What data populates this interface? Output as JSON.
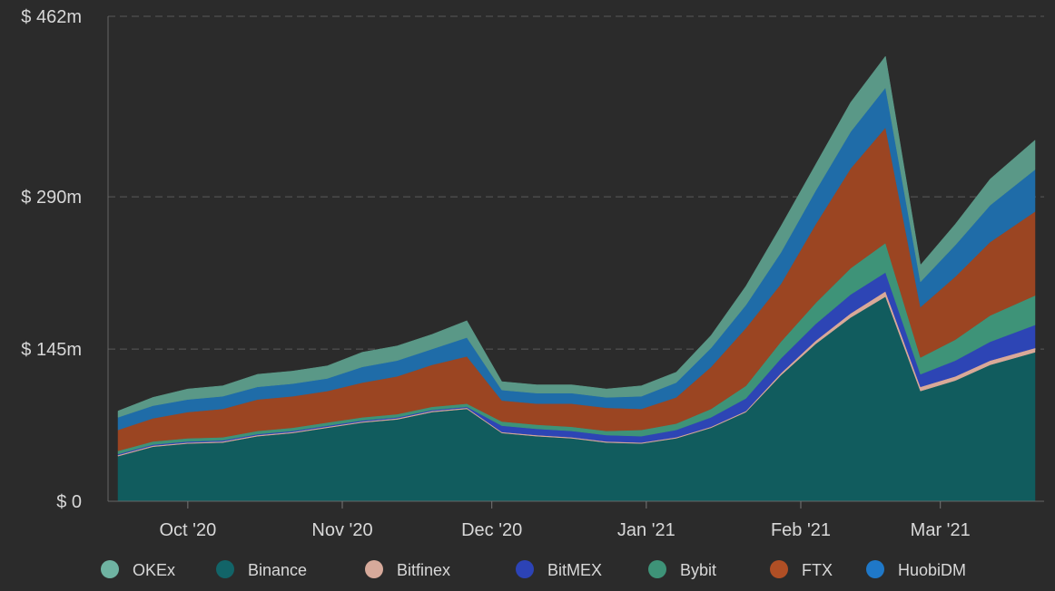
{
  "chart_data": {
    "type": "area",
    "stacked": true,
    "title": "",
    "xlabel": "",
    "ylabel": "",
    "ylim": [
      0,
      462
    ],
    "y_ticks": [
      {
        "value": 0,
        "label": "$ 0"
      },
      {
        "value": 145,
        "label": "$ 145m"
      },
      {
        "value": 290,
        "label": "$ 290m"
      },
      {
        "value": 462,
        "label": "$ 462m"
      }
    ],
    "x_range": [
      "2020-09-17",
      "2021-03-20"
    ],
    "x_ticks": [
      {
        "date": "2020-10-01",
        "label": "Oct '20"
      },
      {
        "date": "2020-11-01",
        "label": "Nov '20"
      },
      {
        "date": "2020-12-01",
        "label": "Dec '20"
      },
      {
        "date": "2021-01-01",
        "label": "Jan '21"
      },
      {
        "date": "2021-02-01",
        "label": "Feb '21"
      },
      {
        "date": "2021-03-01",
        "label": "Mar '21"
      }
    ],
    "grid": "horizontal-dashed",
    "legend_position": "bottom",
    "x": [
      "2020-09-17",
      "2020-09-24",
      "2020-10-01",
      "2020-10-08",
      "2020-10-15",
      "2020-10-22",
      "2020-10-29",
      "2020-11-05",
      "2020-11-12",
      "2020-11-19",
      "2020-11-26",
      "2020-12-03",
      "2020-12-10",
      "2020-12-17",
      "2020-12-24",
      "2020-12-31",
      "2021-01-07",
      "2021-01-14",
      "2021-01-21",
      "2021-01-28",
      "2021-02-04",
      "2021-02-11",
      "2021-02-18",
      "2021-02-25",
      "2021-03-04",
      "2021-03-11",
      "2021-03-20"
    ],
    "series": [
      {
        "name": "Binance",
        "color": "#115c5e",
        "values": [
          43,
          52,
          55,
          56,
          62,
          65,
          70,
          75,
          78,
          85,
          88,
          65,
          62,
          60,
          56,
          55,
          60,
          70,
          85,
          120,
          150,
          175,
          195,
          105,
          115,
          130,
          142
        ]
      },
      {
        "name": "Bitfinex",
        "color": "#d9a998",
        "values": [
          1,
          1,
          1,
          1,
          1,
          1,
          1,
          1,
          1,
          1,
          1,
          1,
          1,
          1,
          1,
          1,
          1,
          1,
          1,
          2,
          3,
          4,
          5,
          4,
          4,
          4,
          4
        ]
      },
      {
        "name": "BitMEX",
        "color": "#2d45b5",
        "values": [
          1,
          1,
          1,
          1,
          1,
          1,
          1,
          1,
          1,
          1,
          1,
          6,
          6,
          6,
          6,
          6,
          7,
          9,
          12,
          14,
          16,
          18,
          18,
          12,
          15,
          18,
          22
        ]
      },
      {
        "name": "Bybit",
        "color": "#3e9378",
        "values": [
          3,
          3,
          3,
          3,
          3,
          3,
          3,
          3,
          3,
          3,
          3,
          4,
          4,
          4,
          4,
          6,
          6,
          8,
          12,
          16,
          20,
          25,
          28,
          16,
          20,
          25,
          28
        ]
      },
      {
        "name": "FTX",
        "color": "#9b4522",
        "values": [
          20,
          22,
          25,
          27,
          30,
          30,
          30,
          33,
          36,
          40,
          45,
          20,
          20,
          22,
          22,
          20,
          25,
          40,
          55,
          55,
          75,
          95,
          110,
          48,
          60,
          70,
          80
        ]
      },
      {
        "name": "HuobiDM",
        "color": "#1f6ca8",
        "values": [
          12,
          12,
          12,
          12,
          12,
          12,
          12,
          15,
          15,
          15,
          18,
          10,
          10,
          10,
          10,
          12,
          14,
          18,
          22,
          30,
          32,
          35,
          38,
          24,
          30,
          35,
          40
        ]
      },
      {
        "name": "OKEx",
        "color": "#5a9887",
        "values": [
          6,
          8,
          10,
          10,
          12,
          12,
          12,
          14,
          14,
          14,
          16,
          8,
          8,
          8,
          8,
          10,
          10,
          12,
          18,
          25,
          25,
          28,
          30,
          16,
          20,
          25,
          28
        ]
      }
    ],
    "legend_entries": [
      {
        "name": "OKEx",
        "color": "#6fb3a2"
      },
      {
        "name": "Binance",
        "color": "#126468"
      },
      {
        "name": "Bitfinex",
        "color": "#d7aa9b"
      },
      {
        "name": "BitMEX",
        "color": "#2c43b6"
      },
      {
        "name": "Bybit",
        "color": "#3e9378"
      },
      {
        "name": "FTX",
        "color": "#b04f25"
      },
      {
        "name": "HuobiDM",
        "color": "#1f78c8"
      }
    ]
  }
}
